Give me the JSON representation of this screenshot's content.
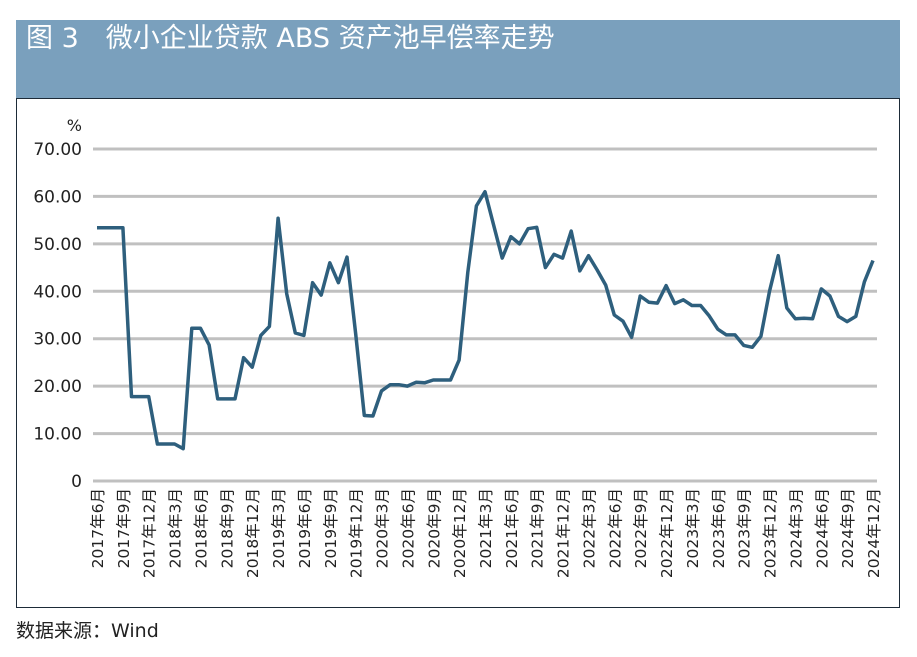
{
  "title": "图 3　微小企业贷款 ABS 资产池早偿率走势",
  "source": "数据来源：Wind",
  "colors": {
    "header_bg": "#7aa0bd",
    "line": "#2e5f7d",
    "grid": "#c0c0c0"
  },
  "chart_data": {
    "type": "line",
    "title": "图 3　微小企业贷款 ABS 资产池早偿率走势",
    "ylabel": "%",
    "ylim": [
      0,
      70
    ],
    "yticks": [
      "0",
      "10.00",
      "20.00",
      "30.00",
      "40.00",
      "50.00",
      "60.00",
      "70.00"
    ],
    "grid": true,
    "xticks": [
      "2017年6月",
      "2017年9月",
      "2017年12月",
      "2018年3月",
      "2018年6月",
      "2018年9月",
      "2018年12月",
      "2019年3月",
      "2019年6月",
      "2019年9月",
      "2019年12月",
      "2020年3月",
      "2020年6月",
      "2020年9月",
      "2020年12月",
      "2021年3月",
      "2021年6月",
      "2021年9月",
      "2021年12月",
      "2022年3月",
      "2022年6月",
      "2022年9月",
      "2022年12月",
      "2023年3月",
      "2023年6月",
      "2023年9月",
      "2023年12月",
      "2024年3月",
      "2024年6月",
      "2024年9月",
      "2024年12月"
    ],
    "x_start": "2017-06",
    "x_end": "2024-12",
    "x_frequency": "monthly",
    "series": [
      {
        "values": [
          53.4,
          53.4,
          53.4,
          53.4,
          17.8,
          17.8,
          17.8,
          7.8,
          7.8,
          7.8,
          6.8,
          32.2,
          32.2,
          28.7,
          17.3,
          17.3,
          17.3,
          26,
          24,
          30.7,
          32.6,
          55.4,
          39.5,
          31.2,
          30.7,
          41.8,
          39.2,
          46,
          41.8,
          47.2,
          31,
          13.8,
          13.7,
          19,
          20.3,
          20.3,
          20,
          20.8,
          20.7,
          21.3,
          21.3,
          21.3,
          25.5,
          44,
          58,
          61,
          54,
          47,
          51.5,
          50,
          53.2,
          53.5,
          45,
          47.8,
          47,
          52.7,
          44.3,
          47.5,
          44.5,
          41.3,
          35,
          33.7,
          30.3,
          39,
          37.7,
          37.5,
          41.2,
          37.4,
          38.2,
          37,
          37,
          34.8,
          32,
          30.8,
          30.8,
          28.6,
          28.2,
          30.5,
          40,
          47.5,
          36.5,
          34.2,
          34.3,
          34.2,
          40.5,
          39,
          34.7,
          33.6,
          34.7,
          42,
          46.5
        ]
      }
    ]
  }
}
